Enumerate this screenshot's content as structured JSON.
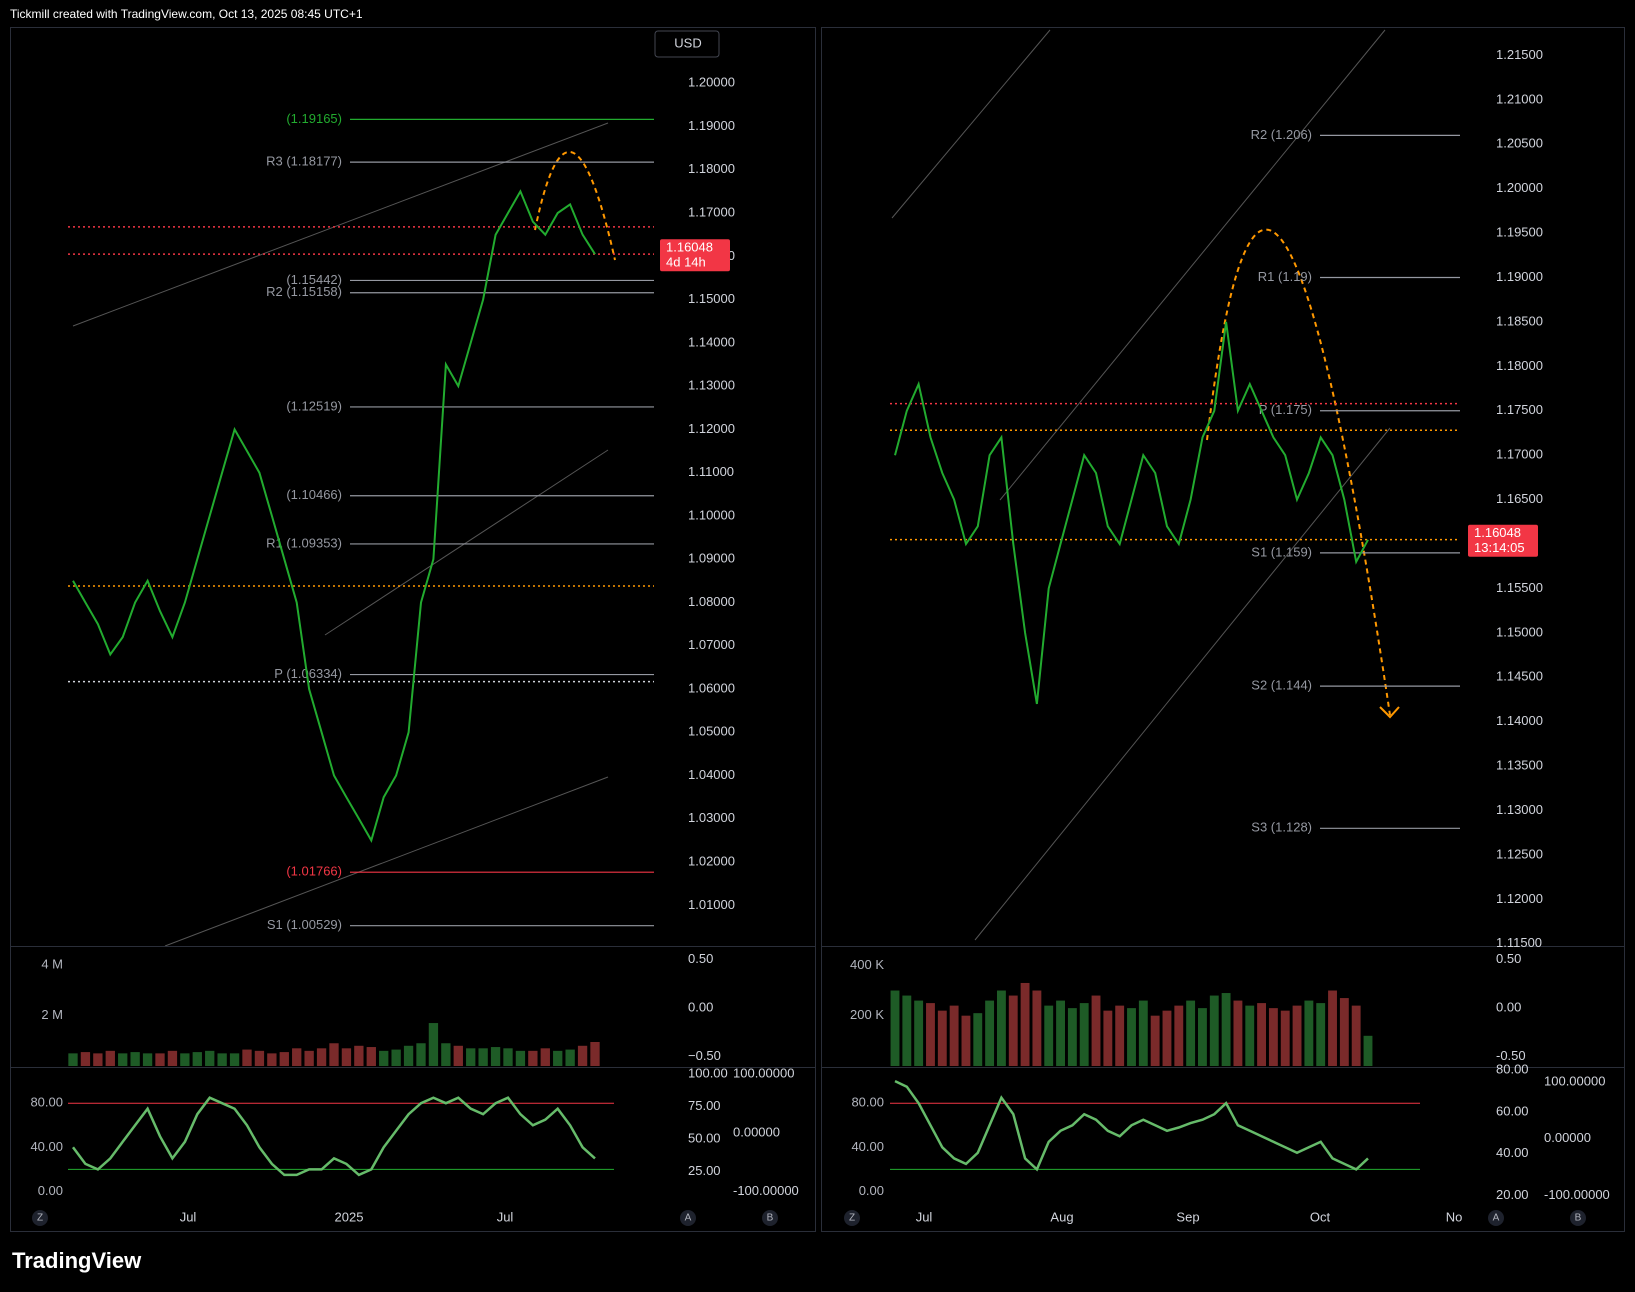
{
  "header": "Tickmill created with TradingView.com, Oct 13, 2025 08:45 UTC+1",
  "footer": "TradingView",
  "chart_data": [
    {
      "type": "line",
      "currency": "USD",
      "color": "#22ab2f",
      "ylim": [
        1.0006,
        1.213
      ],
      "yticks": [
        {
          "value": 1.01,
          "label": "1.01000"
        },
        {
          "value": 1.02,
          "label": "1.02000"
        },
        {
          "value": 1.03,
          "label": "1.03000"
        },
        {
          "value": 1.04,
          "label": "1.04000"
        },
        {
          "value": 1.05,
          "label": "1.05000"
        },
        {
          "value": 1.06,
          "label": "1.06000"
        },
        {
          "value": 1.07,
          "label": "1.07000"
        },
        {
          "value": 1.08,
          "label": "1.08000"
        },
        {
          "value": 1.09,
          "label": "1.09000"
        },
        {
          "value": 1.1,
          "label": "1.10000"
        },
        {
          "value": 1.11,
          "label": "1.11000"
        },
        {
          "value": 1.12,
          "label": "1.12000"
        },
        {
          "value": 1.13,
          "label": "1.13000"
        },
        {
          "value": 1.14,
          "label": "1.14000"
        },
        {
          "value": 1.15,
          "label": "1.15000"
        },
        {
          "value": 1.16,
          "label": "1.16000"
        },
        {
          "value": 1.17,
          "label": "1.17000"
        },
        {
          "value": 1.18,
          "label": "1.18000"
        },
        {
          "value": 1.19,
          "label": "1.19000"
        },
        {
          "value": 1.2,
          "label": "1.20000"
        }
      ],
      "xticks": [
        "Jul",
        "2025",
        "Jul"
      ],
      "values": [
        1.085,
        1.08,
        1.075,
        1.068,
        1.072,
        1.08,
        1.085,
        1.078,
        1.072,
        1.08,
        1.09,
        1.1,
        1.11,
        1.12,
        1.115,
        1.11,
        1.1,
        1.09,
        1.08,
        1.06,
        1.05,
        1.04,
        1.035,
        1.03,
        1.025,
        1.035,
        1.04,
        1.05,
        1.08,
        1.09,
        1.135,
        1.13,
        1.14,
        1.15,
        1.165,
        1.17,
        1.175,
        1.168,
        1.165,
        1.17,
        1.172,
        1.165,
        1.16048
      ],
      "levels": [
        {
          "label": "(1.19165)",
          "value": 1.19165,
          "color": "#22ab2f"
        },
        {
          "label": "R3 (1.18177)",
          "value": 1.18177,
          "color": "#9598a1"
        },
        {
          "label": "(1.15442)",
          "value": 1.15442,
          "color": "#9598a1"
        },
        {
          "label": "R2 (1.15158)",
          "value": 1.15158,
          "color": "#9598a1"
        },
        {
          "label": "(1.12519)",
          "value": 1.12519,
          "color": "#9598a1"
        },
        {
          "label": "(1.10466)",
          "value": 1.10466,
          "color": "#9598a1"
        },
        {
          "label": "R1 (1.09353)",
          "value": 1.09353,
          "color": "#9598a1"
        },
        {
          "label": "P (1.06334)",
          "value": 1.06334,
          "color": "#9598a1"
        },
        {
          "label": "(1.01766)",
          "value": 1.01766,
          "color": "#f23645"
        },
        {
          "label": "S1 (1.00529)",
          "value": 1.00529,
          "color": "#9598a1"
        }
      ],
      "hlines": [
        {
          "value": 1.1668,
          "color": "#f23645"
        },
        {
          "value": 1.1605,
          "color": "#f23645"
        },
        {
          "value": 1.0838,
          "color": "#ff9800"
        },
        {
          "value": 1.0617,
          "color": "#d1d4dc"
        }
      ],
      "last_price": 1.16048,
      "countdown": "4d 14h",
      "volume": {
        "ylim": [
          0,
          4.67
        ],
        "yticks": [
          {
            "value": 2,
            "label": "2 M"
          },
          {
            "value": 4,
            "label": "4 M"
          }
        ],
        "y2lim": [
          -0.6,
          0.62
        ],
        "y2ticks": [
          {
            "value": 0.5,
            "label": "0.50"
          },
          {
            "value": 0,
            "label": "0.00"
          },
          {
            "value": -0.5,
            "label": "−0.50"
          }
        ],
        "values": [
          0.5,
          0.55,
          0.5,
          0.6,
          0.5,
          0.55,
          0.5,
          0.5,
          0.6,
          0.5,
          0.55,
          0.6,
          0.5,
          0.5,
          0.65,
          0.6,
          0.5,
          0.55,
          0.7,
          0.6,
          0.7,
          0.9,
          0.7,
          0.8,
          0.75,
          0.6,
          0.65,
          0.8,
          0.9,
          1.7,
          0.9,
          0.8,
          0.7,
          0.7,
          0.75,
          0.7,
          0.6,
          0.6,
          0.7,
          0.6,
          0.65,
          0.8,
          0.95
        ],
        "up_color": "#1e5b26",
        "down_color": "#7a2a2a"
      },
      "oscillator": {
        "ylim": [
          -15,
          111
        ],
        "yticks": [
          {
            "value": 80,
            "label": "80.00"
          },
          {
            "value": 40,
            "label": "40.00"
          },
          {
            "value": 0,
            "label": "0.00"
          }
        ],
        "y2lim": [
          -3,
          104
        ],
        "y2ticks": [
          {
            "value": 100,
            "label": "100.00"
          },
          {
            "value": 75,
            "label": "75.00"
          },
          {
            "value": 50,
            "label": "50.00"
          },
          {
            "value": 25,
            "label": "25.00"
          }
        ],
        "y3lim": [
          -128,
          109
        ],
        "y3ticks": [
          {
            "value": 100,
            "label": "100.00000"
          },
          {
            "value": 0,
            "label": "0.00000"
          },
          {
            "value": -100,
            "label": "-100.00000"
          }
        ],
        "values": [
          40,
          25,
          20,
          30,
          45,
          60,
          75,
          50,
          30,
          45,
          70,
          85,
          80,
          75,
          60,
          40,
          25,
          15,
          15,
          20,
          20,
          30,
          25,
          15,
          20,
          40,
          55,
          70,
          80,
          85,
          80,
          85,
          75,
          70,
          80,
          85,
          70,
          60,
          65,
          75,
          60,
          40,
          30
        ],
        "color": "#66bb6a",
        "hlines": [
          {
            "value": 80,
            "color": "#f23645"
          },
          {
            "value": 20,
            "color": "#22ab2f"
          }
        ]
      },
      "axis_letters": [
        "Z",
        "A",
        "B"
      ]
    },
    {
      "type": "line",
      "color": "#22ab2f",
      "ylim": [
        1.11475,
        1.2182
      ],
      "yticks": [
        {
          "value": 1.115,
          "label": "1.11500"
        },
        {
          "value": 1.12,
          "label": "1.12000"
        },
        {
          "value": 1.125,
          "label": "1.12500"
        },
        {
          "value": 1.13,
          "label": "1.13000"
        },
        {
          "value": 1.135,
          "label": "1.13500"
        },
        {
          "value": 1.14,
          "label": "1.14000"
        },
        {
          "value": 1.145,
          "label": "1.14500"
        },
        {
          "value": 1.15,
          "label": "1.15000"
        },
        {
          "value": 1.155,
          "label": "1.15500"
        },
        {
          "value": 1.165,
          "label": "1.16500"
        },
        {
          "value": 1.17,
          "label": "1.17000"
        },
        {
          "value": 1.175,
          "label": "1.17500"
        },
        {
          "value": 1.18,
          "label": "1.18000"
        },
        {
          "value": 1.185,
          "label": "1.18500"
        },
        {
          "value": 1.19,
          "label": "1.19000"
        },
        {
          "value": 1.195,
          "label": "1.19500"
        },
        {
          "value": 1.2,
          "label": "1.20000"
        },
        {
          "value": 1.205,
          "label": "1.20500"
        },
        {
          "value": 1.21,
          "label": "1.21000"
        },
        {
          "value": 1.215,
          "label": "1.21500"
        }
      ],
      "xticks": [
        "Jul",
        "Aug",
        "Sep",
        "Oct",
        "No"
      ],
      "values": [
        1.17,
        1.175,
        1.178,
        1.172,
        1.168,
        1.165,
        1.16,
        1.162,
        1.17,
        1.172,
        1.16,
        1.15,
        1.142,
        1.155,
        1.16,
        1.165,
        1.17,
        1.168,
        1.162,
        1.16,
        1.165,
        1.17,
        1.168,
        1.162,
        1.16,
        1.165,
        1.172,
        1.175,
        1.185,
        1.175,
        1.178,
        1.175,
        1.172,
        1.17,
        1.165,
        1.168,
        1.172,
        1.17,
        1.165,
        1.158,
        1.16048
      ],
      "levels": [
        {
          "label": "R2 (1.206)",
          "value": 1.206,
          "color": "#9598a1"
        },
        {
          "label": "R1 (1.19)",
          "value": 1.19,
          "color": "#9598a1"
        },
        {
          "label": "P (1.175)",
          "value": 1.175,
          "color": "#9598a1"
        },
        {
          "label": "S1 (1.159)",
          "value": 1.159,
          "color": "#9598a1"
        },
        {
          "label": "S2 (1.144)",
          "value": 1.144,
          "color": "#9598a1"
        },
        {
          "label": "S3 (1.128)",
          "value": 1.128,
          "color": "#9598a1"
        }
      ],
      "hlines": [
        {
          "value": 1.1758,
          "color": "#f23645"
        },
        {
          "value": 1.1728,
          "color": "#ff9800"
        },
        {
          "value": 1.1605,
          "color": "#ff9800"
        }
      ],
      "last_price": 1.16048,
      "countdown": "13:14:05",
      "volume": {
        "ylim": [
          0,
          469
        ],
        "yticks": [
          {
            "value": 200,
            "label": "200 K"
          },
          {
            "value": 400,
            "label": "400 K"
          }
        ],
        "y2lim": [
          -0.6,
          0.62
        ],
        "y2ticks": [
          {
            "value": 0.5,
            "label": "0.50"
          },
          {
            "value": 0,
            "label": "0.00"
          },
          {
            "value": -0.5,
            "label": "-0.50"
          }
        ],
        "values": [
          300,
          280,
          260,
          250,
          220,
          240,
          200,
          210,
          260,
          300,
          280,
          330,
          300,
          240,
          260,
          230,
          250,
          280,
          220,
          240,
          230,
          260,
          200,
          220,
          240,
          260,
          230,
          280,
          290,
          260,
          240,
          250,
          230,
          220,
          240,
          260,
          250,
          300,
          270,
          240,
          120
        ],
        "up_color": "#1e5b26",
        "down_color": "#7a2a2a"
      },
      "oscillator": {
        "ylim": [
          -15,
          111
        ],
        "yticks": [
          {
            "value": 80,
            "label": "80.00"
          },
          {
            "value": 40,
            "label": "40.00"
          },
          {
            "value": 0,
            "label": "0.00"
          }
        ],
        "y2lim": [
          14,
          80.5
        ],
        "y2ticks": [
          {
            "value": 80,
            "label": "80.00"
          },
          {
            "value": 60,
            "label": "60.00"
          },
          {
            "value": 40,
            "label": "40.00"
          },
          {
            "value": 20,
            "label": "20.00"
          }
        ],
        "y3lim": [
          -122,
          123
        ],
        "y3ticks": [
          {
            "value": 100,
            "label": "100.00000"
          },
          {
            "value": 0,
            "label": "0.00000"
          },
          {
            "value": -100,
            "label": "-100.00000"
          }
        ],
        "values": [
          100,
          95,
          80,
          60,
          40,
          30,
          25,
          35,
          60,
          85,
          70,
          30,
          20,
          45,
          55,
          60,
          70,
          65,
          55,
          50,
          60,
          65,
          60,
          55,
          58,
          62,
          65,
          70,
          80,
          60,
          55,
          50,
          45,
          40,
          35,
          40,
          45,
          30,
          25,
          20,
          30
        ],
        "color": "#66bb6a",
        "hlines": [
          {
            "value": 80,
            "color": "#f23645"
          },
          {
            "value": 20,
            "color": "#22ab2f"
          }
        ]
      },
      "axis_letters": [
        "Z",
        "A",
        "B"
      ]
    }
  ]
}
